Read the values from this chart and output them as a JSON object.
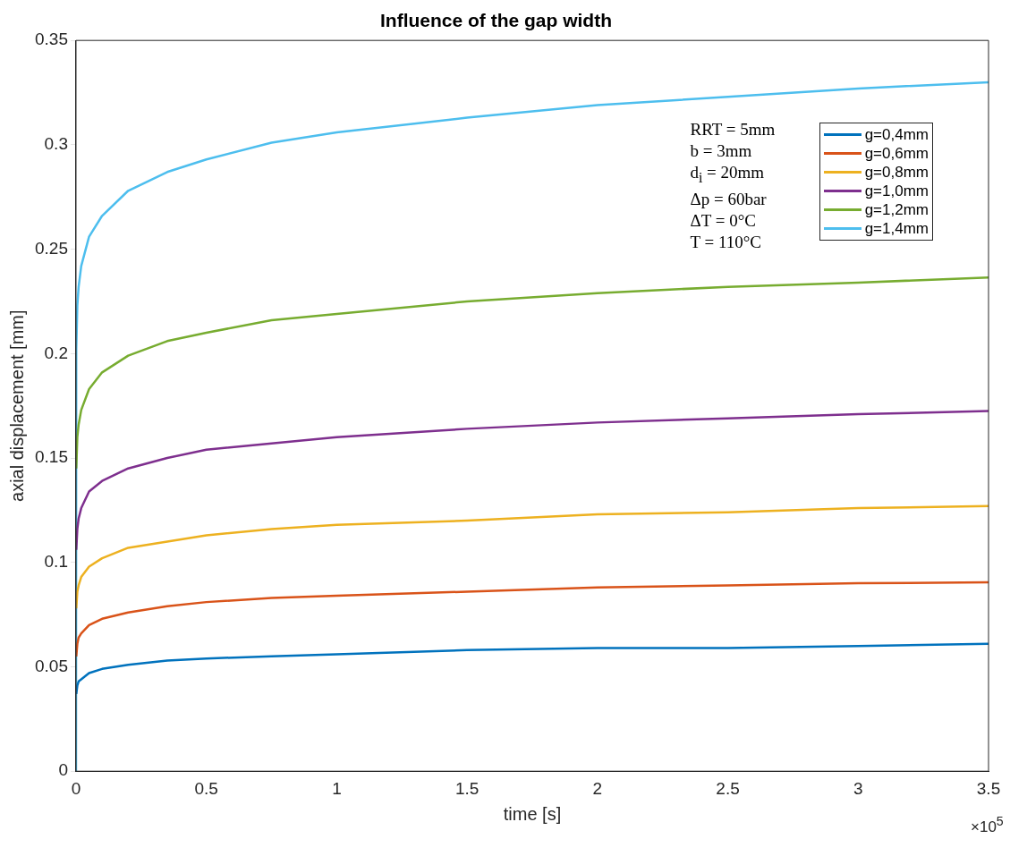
{
  "chart_data": {
    "type": "line",
    "title": "Influence of the gap width",
    "xlabel": "time [s]",
    "ylabel": "axial displacement [mm]",
    "x": [
      0,
      0.001,
      0.005,
      0.01,
      0.02,
      0.05,
      0.1,
      0.2,
      0.35,
      0.5,
      0.75,
      1,
      1.5,
      2,
      2.5,
      3,
      3.5
    ],
    "xlim": [
      0,
      3.5
    ],
    "xticks": [
      0,
      0.5,
      1,
      1.5,
      2,
      2.5,
      3,
      3.5
    ],
    "ylim": [
      0,
      0.35
    ],
    "yticks": [
      0,
      0.05,
      0.1,
      0.15,
      0.2,
      0.25,
      0.3,
      0.35
    ],
    "grid": false,
    "legend": "top right",
    "marker": "none",
    "line_style": "solid",
    "annotations": [
      "×10$^{5}$",
      "RRT = 5mm",
      "b = 3mm",
      "d$_{i}$ = 20mm",
      "Δp = 60bar",
      "ΔT = 0°C",
      "T = 110°C"
    ],
    "series": [
      {
        "name": "g=0,4mm",
        "color": "#0072bd",
        "values": [
          null,
          0.037,
          0.041,
          0.043,
          0.044,
          0.047,
          0.049,
          0.051,
          0.053,
          0.054,
          0.055,
          0.056,
          0.058,
          0.059,
          0.059,
          0.06,
          0.061
        ]
      },
      {
        "name": "g=0,6mm",
        "color": "#d95319",
        "values": [
          null,
          0.055,
          0.061,
          0.064,
          0.066,
          0.07,
          0.073,
          0.076,
          0.079,
          0.081,
          0.083,
          0.084,
          0.086,
          0.088,
          0.089,
          0.09,
          0.0905
        ]
      },
      {
        "name": "g=0,8mm",
        "color": "#edb120",
        "values": [
          null,
          0.078,
          0.086,
          0.089,
          0.093,
          0.098,
          0.102,
          0.107,
          0.11,
          0.113,
          0.116,
          0.118,
          0.12,
          0.123,
          0.124,
          0.126,
          0.127
        ]
      },
      {
        "name": "g=1,0mm",
        "color": "#7e2f8e",
        "values": [
          null,
          0.106,
          0.116,
          0.121,
          0.126,
          0.134,
          0.139,
          0.145,
          0.15,
          0.154,
          0.157,
          0.16,
          0.164,
          0.167,
          0.169,
          0.171,
          0.1725
        ]
      },
      {
        "name": "g=1,2mm",
        "color": "#77ac30",
        "values": [
          null,
          0.145,
          0.16,
          0.166,
          0.173,
          0.183,
          0.191,
          0.199,
          0.206,
          0.21,
          0.216,
          0.219,
          0.225,
          0.229,
          0.232,
          0.234,
          0.2365
        ]
      },
      {
        "name": "g=1,4mm",
        "color": "#4dbeee",
        "values": [
          0,
          0.202,
          0.223,
          0.232,
          0.242,
          0.256,
          0.266,
          0.278,
          0.287,
          0.293,
          0.301,
          0.306,
          0.313,
          0.319,
          0.323,
          0.327,
          0.33
        ]
      }
    ]
  }
}
